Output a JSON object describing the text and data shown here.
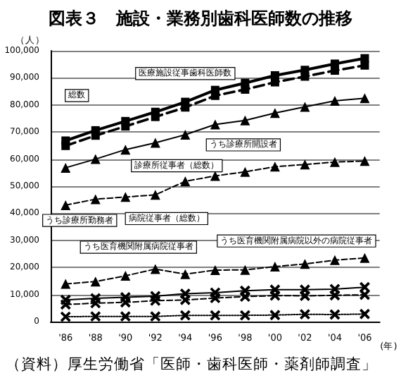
{
  "chart_data": {
    "type": "line",
    "title": "図表３　施設・業務別歯科医師数の推移",
    "ylabel": "（人）",
    "xlabel": "(年)",
    "categories": [
      "'86",
      "'88",
      "'90",
      "'92",
      "'94",
      "'96",
      "'98",
      "'00",
      "'02",
      "'04",
      "'06"
    ],
    "ylim": [
      0,
      100000
    ],
    "yticks": [
      {
        "value": 0,
        "label": "0"
      },
      {
        "value": 10000,
        "label": "10,000"
      },
      {
        "value": 20000,
        "label": "20,000"
      },
      {
        "value": 30000,
        "label": "30,000"
      },
      {
        "value": 40000,
        "label": "40,000"
      },
      {
        "value": 50000,
        "label": "50,000"
      },
      {
        "value": 60000,
        "label": "60,000"
      },
      {
        "value": 70000,
        "label": "70,000"
      },
      {
        "value": 80000,
        "label": "80,000"
      },
      {
        "value": 90000,
        "label": "90,000"
      },
      {
        "value": 100000,
        "label": "100,000"
      }
    ],
    "grid": "y",
    "legend": false,
    "series": [
      {
        "name": "総数",
        "color": "#000000",
        "marker": "square",
        "line_style": "solid",
        "values": [
          66800,
          70600,
          74000,
          77400,
          81100,
          85500,
          88100,
          90900,
          92900,
          95200,
          97200
        ]
      },
      {
        "name": "医療施設従事歯科医師数",
        "color": "#000000",
        "marker": "square",
        "line_style": "dashed",
        "values": [
          64900,
          68700,
          72100,
          75600,
          79100,
          83400,
          85700,
          88400,
          90500,
          92700,
          94600
        ]
      },
      {
        "name": "診療所従事者（総数）",
        "color": "#000000",
        "marker": "triangle",
        "line_style": "solid",
        "values": [
          56800,
          60000,
          63500,
          66000,
          69000,
          72800,
          74300,
          77000,
          79300,
          81500,
          82500
        ]
      },
      {
        "name": "うち診療所開設者",
        "color": "#000000",
        "marker": "triangle",
        "line_style": "dashed",
        "values": [
          43000,
          45200,
          46000,
          46800,
          51800,
          53800,
          55300,
          57200,
          58000,
          58900,
          59300
        ]
      },
      {
        "name": "うち診療所勤務者",
        "color": "#000000",
        "marker": "triangle",
        "line_style": "dashed",
        "values": [
          13900,
          14800,
          16900,
          19400,
          17500,
          19000,
          19100,
          20300,
          21300,
          22700,
          23500
        ]
      },
      {
        "name": "病院従事者（総数）",
        "color": "#000000",
        "marker": "cross",
        "line_style": "solid",
        "values": [
          8000,
          8600,
          9000,
          9400,
          10300,
          10700,
          11400,
          11800,
          11800,
          12000,
          12700
        ]
      },
      {
        "name": "うち医育機関附属病院従事者",
        "color": "#000000",
        "marker": "cross",
        "line_style": "dashed",
        "values": [
          6300,
          6800,
          7100,
          7700,
          8000,
          8700,
          9200,
          9600,
          9500,
          9700,
          9900
        ]
      },
      {
        "name": "うち医育機関附属病院以外の病院従事者",
        "color": "#000000",
        "marker": "cross",
        "line_style": "dotted",
        "values": [
          1800,
          1900,
          1900,
          1900,
          2300,
          2300,
          2300,
          2400,
          2700,
          2600,
          2800
        ]
      }
    ],
    "annotations": [
      "（資料）厚生労働省「医師・歯科医師・薬剤師調査」"
    ]
  }
}
